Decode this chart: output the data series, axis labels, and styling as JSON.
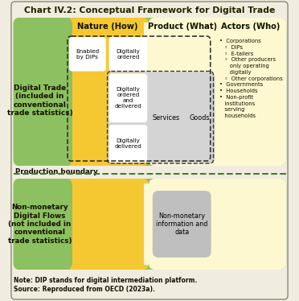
{
  "title": "Chart IV.2: Conceptual Framework for Digital Trade",
  "bg_color": "#f0ede0",
  "outer_border": "#b0a080",
  "green_color": "#8dc060",
  "yellow_color": "#f5c832",
  "light_yellow": "#fef8d0",
  "gray_color": "#c0bfc0",
  "light_gray": "#d4d4d4",
  "white": "#ffffff",
  "dashed_green": "#4a7a30",
  "digital_trade_label": "Digital Trade\n(included in\nconventional\ntrade statistics)",
  "non_monetary_label": "Non-monetary\nDigital Flows\n(not included in\nconventional\ntrade statistics)",
  "nature_header": "Nature (How)",
  "product_header": "Product (What)",
  "actors_header": "Actors (Who)",
  "enabled_by": "Enabled\nby DIPs",
  "digitally_ordered": "Digitally\nordered",
  "digitally_ordered_delivered": "Digitally\nordered\nand\ndelivered",
  "digitally_delivered": "Digitally\ndelivered",
  "services_label": "Services",
  "goods_label": "Goods",
  "non_monetary_info": "Non-monetary\ninformation and\ndata",
  "production_boundary": "Production boundary",
  "note_line1": "Note: DIP stands for digital intermediation platform.",
  "note_line2": "Source: Reproduced from OECD (2023a).",
  "actors_text": "•  Corporations\n   ◦  DIPs\n   ◦  E-tailers\n   ◦  Other producers\n      only operating\n      digitally\n   ◦  Other corporations\n•  Governments\n•  Households\n•  Non-profit\n   institutions\n   serving\n   households"
}
